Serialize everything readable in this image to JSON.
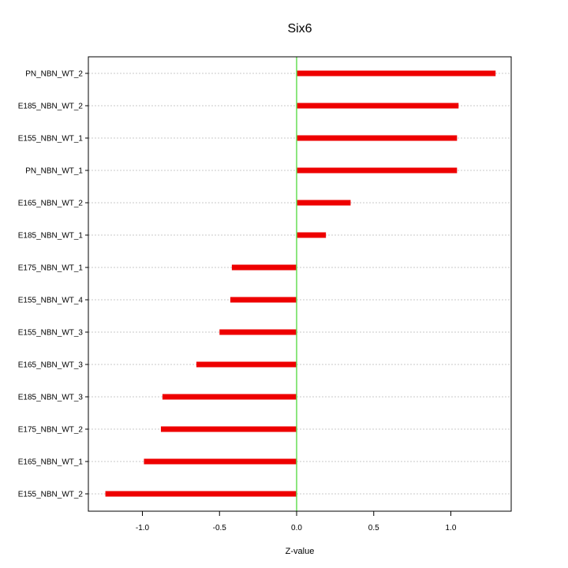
{
  "chart_data": {
    "type": "bar",
    "orientation": "horizontal",
    "title": "Six6",
    "xlabel": "Z-value",
    "ylabel": "",
    "xlim": [
      -1.35,
      1.4
    ],
    "xticks": [
      "-1.0",
      "-0.5",
      "0.0",
      "0.5",
      "1.0"
    ],
    "xtick_values": [
      -1.0,
      -0.5,
      0.0,
      0.5,
      1.0
    ],
    "grid": "horizontal dotted",
    "reference_line": {
      "x": 0.0,
      "color": "#66dd55"
    },
    "bar_color": "#ee0000",
    "categories": [
      "PN_NBN_WT_2",
      "E185_NBN_WT_2",
      "E155_NBN_WT_1",
      "PN_NBN_WT_1",
      "E165_NBN_WT_2",
      "E185_NBN_WT_1",
      "E175_NBN_WT_1",
      "E155_NBN_WT_4",
      "E155_NBN_WT_3",
      "E165_NBN_WT_3",
      "E185_NBN_WT_3",
      "E175_NBN_WT_2",
      "E165_NBN_WT_1",
      "E155_NBN_WT_2"
    ],
    "values": [
      1.29,
      1.05,
      1.04,
      1.04,
      0.35,
      0.19,
      -0.42,
      -0.43,
      -0.5,
      -0.65,
      -0.87,
      -0.88,
      -0.99,
      -1.24
    ]
  }
}
